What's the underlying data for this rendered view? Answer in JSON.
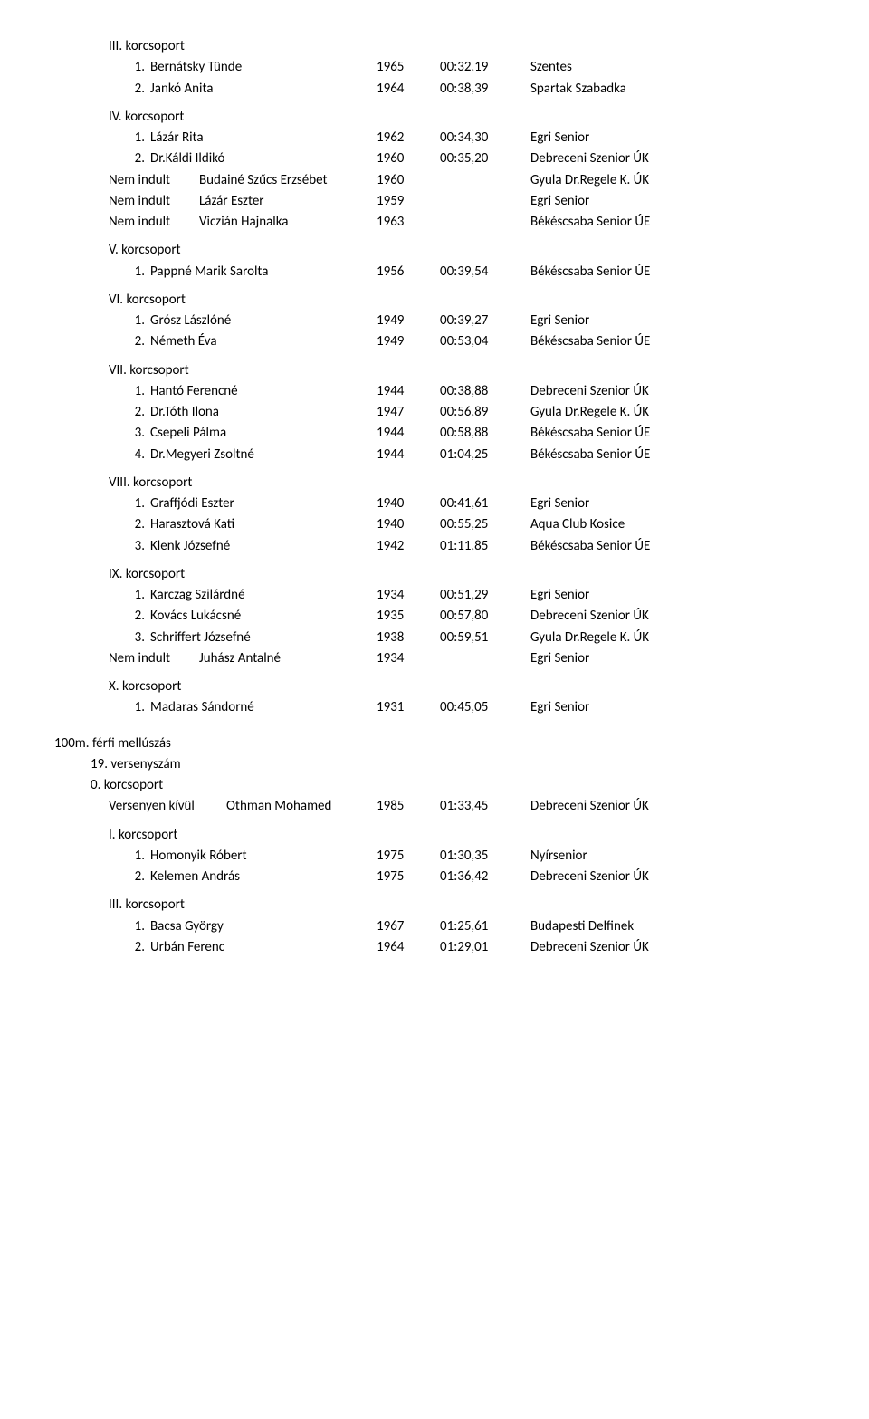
{
  "groups": [
    {
      "label": "III. korcsoport",
      "rows": [
        {
          "rank": "1.",
          "name": "Bernátsky Tünde",
          "year": "1965",
          "time": "00:32,19",
          "club": "Szentes"
        },
        {
          "rank": "2.",
          "name": "Jankó Anita",
          "year": "1964",
          "time": "00:38,39",
          "club": "Spartak Szabadka"
        }
      ]
    },
    {
      "label": "IV. korcsoport",
      "rows": [
        {
          "rank": "1.",
          "name": "Lázár Rita",
          "year": "1962",
          "time": "00:34,30",
          "club": "Egri Senior"
        },
        {
          "rank": "2.",
          "name": "Dr.Káldi Ildikó",
          "year": "1960",
          "time": "00:35,20",
          "club": "Debreceni Szenior ÚK"
        }
      ],
      "notindult": [
        {
          "label": "Nem indult",
          "name": "Budainé Szűcs Erzsébet",
          "year": "1960",
          "time": "",
          "club": "Gyula Dr.Regele K. ÚK"
        },
        {
          "label": "Nem indult",
          "name": "Lázár Eszter",
          "year": "1959",
          "time": "",
          "club": "Egri Senior"
        },
        {
          "label": "Nem indult",
          "name": "Viczián Hajnalka",
          "year": "1963",
          "time": "",
          "club": "Békéscsaba Senior ÚE"
        }
      ]
    },
    {
      "label": "V. korcsoport",
      "rows": [
        {
          "rank": "1.",
          "name": "Pappné Marik Sarolta",
          "year": "1956",
          "time": "00:39,54",
          "club": "Békéscsaba Senior ÚE"
        }
      ]
    },
    {
      "label": "VI. korcsoport",
      "rows": [
        {
          "rank": "1.",
          "name": "Grósz Lászlóné",
          "year": "1949",
          "time": "00:39,27",
          "club": "Egri Senior"
        },
        {
          "rank": "2.",
          "name": "Németh Éva",
          "year": "1949",
          "time": "00:53,04",
          "club": "Békéscsaba Senior ÚE"
        }
      ]
    },
    {
      "label": "VII. korcsoport",
      "rows": [
        {
          "rank": "1.",
          "name": "Hantó Ferencné",
          "year": "1944",
          "time": "00:38,88",
          "club": "Debreceni Szenior ÚK"
        },
        {
          "rank": "2.",
          "name": "Dr.Tóth Ilona",
          "year": "1947",
          "time": "00:56,89",
          "club": "Gyula Dr.Regele K. ÚK"
        },
        {
          "rank": "3.",
          "name": "Csepeli Pálma",
          "year": "1944",
          "time": "00:58,88",
          "club": "Békéscsaba Senior ÚE"
        },
        {
          "rank": "4.",
          "name": "Dr.Megyeri Zsoltné",
          "year": "1944",
          "time": "01:04,25",
          "club": "Békéscsaba Senior ÚE"
        }
      ]
    },
    {
      "label": "VIII. korcsoport",
      "rows": [
        {
          "rank": "1.",
          "name": "Graffjódi Eszter",
          "year": "1940",
          "time": "00:41,61",
          "club": "Egri Senior"
        },
        {
          "rank": "2.",
          "name": "Harasztová Kati",
          "year": "1940",
          "time": "00:55,25",
          "club": "Aqua Club Kosice"
        },
        {
          "rank": "3.",
          "name": "Klenk Józsefné",
          "year": "1942",
          "time": "01:11,85",
          "club": "Békéscsaba Senior ÚE"
        }
      ]
    },
    {
      "label": "IX. korcsoport",
      "rows": [
        {
          "rank": "1.",
          "name": "Karczag Szilárdné",
          "year": "1934",
          "time": "00:51,29",
          "club": "Egri Senior"
        },
        {
          "rank": "2.",
          "name": "Kovács Lukácsné",
          "year": "1935",
          "time": "00:57,80",
          "club": "Debreceni Szenior ÚK"
        },
        {
          "rank": "3.",
          "name": "Schriffert Józsefné",
          "year": "1938",
          "time": "00:59,51",
          "club": "Gyula Dr.Regele K. ÚK"
        }
      ],
      "notindult": [
        {
          "label": "Nem indult",
          "name": "Juhász Antalné",
          "year": "1934",
          "time": "",
          "club": "Egri Senior"
        }
      ]
    },
    {
      "label": "X. korcsoport",
      "rows": [
        {
          "rank": "1.",
          "name": "Madaras Sándorné",
          "year": "1931",
          "time": "00:45,05",
          "club": "Egri Senior"
        }
      ]
    }
  ],
  "event2": {
    "title": "100m. férfi mellúszás",
    "heat": "19. versenyszám",
    "g0_label": "0. korcsoport",
    "vk": {
      "label": "Versenyen kívül",
      "name": "Othman Mohamed",
      "year": "1985",
      "time": "01:33,45",
      "club": "Debreceni Szenior ÚK"
    },
    "groups": [
      {
        "label": "I. korcsoport",
        "rows": [
          {
            "rank": "1.",
            "name": "Homonyik Róbert",
            "year": "1975",
            "time": "01:30,35",
            "club": "Nyírsenior"
          },
          {
            "rank": "2.",
            "name": "Kelemen András",
            "year": "1975",
            "time": "01:36,42",
            "club": "Debreceni Szenior ÚK"
          }
        ]
      },
      {
        "label": "III. korcsoport",
        "rows": [
          {
            "rank": "1.",
            "name": "Bacsa György",
            "year": "1967",
            "time": "01:25,61",
            "club": "Budapesti Delfinek"
          },
          {
            "rank": "2.",
            "name": "Urbán Ferenc",
            "year": "1964",
            "time": "01:29,01",
            "club": "Debreceni Szenior ÚK"
          }
        ]
      }
    ]
  }
}
